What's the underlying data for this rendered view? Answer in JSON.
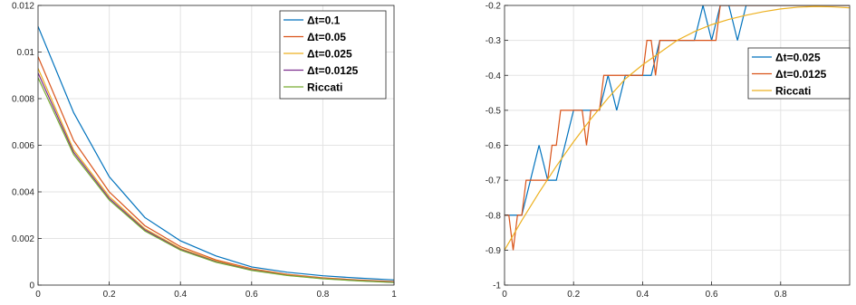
{
  "chart_data": [
    {
      "type": "line",
      "title": "",
      "xlabel": "",
      "ylabel": "",
      "xlim": [
        0,
        1
      ],
      "ylim": [
        0,
        0.012
      ],
      "xticks": [
        0,
        0.2,
        0.4,
        0.6,
        0.8,
        1
      ],
      "xtick_labels": [
        "0",
        "0.2",
        "0.4",
        "0.6",
        "0.8",
        "1"
      ],
      "yticks": [
        0,
        0.002,
        0.004,
        0.006,
        0.008,
        0.01,
        0.012
      ],
      "ytick_labels": [
        "0",
        "0.002",
        "0.004",
        "0.006",
        "0.008",
        "0.01",
        "0.012"
      ],
      "grid": true,
      "legend_position": "top-right",
      "series": [
        {
          "name": "Δt=0.1",
          "color": "#0072bd",
          "x": [
            0,
            0.1,
            0.2,
            0.3,
            0.4,
            0.5,
            0.6,
            0.7,
            0.8,
            0.9,
            1.0
          ],
          "y": [
            0.0111,
            0.0074,
            0.00465,
            0.0029,
            0.0019,
            0.00125,
            0.00078,
            0.00055,
            0.0004,
            0.0003,
            0.00022
          ]
        },
        {
          "name": "Δt=0.05",
          "color": "#d95319",
          "x": [
            0,
            0.1,
            0.2,
            0.3,
            0.4,
            0.5,
            0.6,
            0.7,
            0.8,
            0.9,
            1.0
          ],
          "y": [
            0.0098,
            0.0062,
            0.004,
            0.00255,
            0.00165,
            0.00108,
            0.0007,
            0.00046,
            0.00031,
            0.00022,
            0.00015
          ]
        },
        {
          "name": "Δt=0.025",
          "color": "#edb120",
          "x": [
            0,
            0.1,
            0.2,
            0.3,
            0.4,
            0.5,
            0.6,
            0.7,
            0.8,
            0.9,
            1.0
          ],
          "y": [
            0.0093,
            0.0058,
            0.0038,
            0.00242,
            0.00157,
            0.00103,
            0.00067,
            0.00044,
            0.00029,
            0.0002,
            0.00013
          ]
        },
        {
          "name": "Δt=0.0125",
          "color": "#7e2f8e",
          "x": [
            0,
            0.1,
            0.2,
            0.3,
            0.4,
            0.5,
            0.6,
            0.7,
            0.8,
            0.9,
            1.0
          ],
          "y": [
            0.0091,
            0.0057,
            0.00372,
            0.00237,
            0.00153,
            0.001,
            0.00065,
            0.00042,
            0.00028,
            0.00019,
            0.00012
          ]
        },
        {
          "name": "Riccati",
          "color": "#77ac30",
          "x": [
            0,
            0.1,
            0.2,
            0.3,
            0.4,
            0.5,
            0.6,
            0.7,
            0.8,
            0.9,
            1.0
          ],
          "y": [
            0.0089,
            0.0056,
            0.00365,
            0.00232,
            0.0015,
            0.00098,
            0.00063,
            0.00041,
            0.00027,
            0.00018,
            0.00011
          ]
        }
      ]
    },
    {
      "type": "line",
      "title": "",
      "xlabel": "",
      "ylabel": "",
      "xlim": [
        0,
        1
      ],
      "ylim": [
        -1,
        -0.2
      ],
      "xticks": [
        0,
        0.2,
        0.4,
        0.6,
        0.8
      ],
      "xtick_labels": [
        "0",
        "0.2",
        "0.4",
        "0.6",
        "0.8"
      ],
      "yticks": [
        -1,
        -0.9,
        -0.8,
        -0.7,
        -0.6,
        -0.5,
        -0.4,
        -0.3,
        -0.2
      ],
      "ytick_labels": [
        "-1",
        "-0.9",
        "-0.8",
        "-0.7",
        "-0.6",
        "-0.5",
        "-0.4",
        "-0.3",
        "-0.2"
      ],
      "grid": true,
      "legend_position": "right",
      "series": [
        {
          "name": "Δt=0.025",
          "color": "#0072bd",
          "x": [
            0,
            0.025,
            0.05,
            0.075,
            0.1,
            0.125,
            0.15,
            0.175,
            0.2,
            0.225,
            0.25,
            0.275,
            0.3,
            0.325,
            0.35,
            0.375,
            0.4,
            0.425,
            0.45,
            0.475,
            0.5,
            0.525,
            0.55,
            0.575,
            0.6,
            0.625,
            0.65,
            0.675,
            0.7,
            0.725,
            0.75,
            0.775,
            0.8,
            0.825,
            0.85,
            0.875,
            0.9,
            0.925,
            0.95,
            0.975,
            1.0
          ],
          "y": [
            -0.8,
            -0.8,
            -0.8,
            -0.7,
            -0.6,
            -0.7,
            -0.7,
            -0.6,
            -0.5,
            -0.5,
            -0.5,
            -0.5,
            -0.4,
            -0.5,
            -0.4,
            -0.4,
            -0.4,
            -0.4,
            -0.3,
            -0.3,
            -0.3,
            -0.3,
            -0.3,
            -0.2,
            -0.3,
            -0.2,
            -0.2,
            -0.3,
            -0.2,
            -0.2,
            -0.2,
            -0.2,
            -0.2,
            -0.2,
            -0.2,
            -0.2,
            -0.2,
            -0.2,
            -0.2,
            -0.2,
            -0.2
          ]
        },
        {
          "name": "Δt=0.0125",
          "color": "#d95319",
          "x": [
            0,
            0.0125,
            0.025,
            0.0375,
            0.05,
            0.0625,
            0.075,
            0.1,
            0.125,
            0.1375,
            0.15,
            0.1625,
            0.175,
            0.2,
            0.225,
            0.2375,
            0.25,
            0.275,
            0.2875,
            0.3,
            0.325,
            0.35,
            0.3625,
            0.375,
            0.4,
            0.4125,
            0.425,
            0.4375,
            0.45,
            0.475,
            0.5,
            0.55,
            0.5625,
            0.575,
            0.6,
            0.6125,
            0.625,
            0.65,
            0.7,
            0.8,
            0.9,
            1.0
          ],
          "y": [
            -0.8,
            -0.8,
            -0.9,
            -0.8,
            -0.8,
            -0.7,
            -0.7,
            -0.7,
            -0.7,
            -0.6,
            -0.6,
            -0.5,
            -0.5,
            -0.5,
            -0.5,
            -0.6,
            -0.5,
            -0.5,
            -0.4,
            -0.4,
            -0.4,
            -0.4,
            -0.4,
            -0.4,
            -0.4,
            -0.3,
            -0.3,
            -0.4,
            -0.3,
            -0.3,
            -0.3,
            -0.3,
            -0.3,
            -0.3,
            -0.3,
            -0.3,
            -0.2,
            -0.2,
            -0.2,
            -0.2,
            -0.2,
            -0.2
          ]
        },
        {
          "name": "Riccati",
          "color": "#edb120",
          "x": [
            0,
            0.05,
            0.1,
            0.15,
            0.2,
            0.25,
            0.3,
            0.35,
            0.4,
            0.45,
            0.5,
            0.55,
            0.6,
            0.65,
            0.7,
            0.75,
            0.8,
            0.85,
            0.9,
            0.95,
            1.0
          ],
          "y": [
            -0.9,
            -0.815,
            -0.735,
            -0.66,
            -0.59,
            -0.525,
            -0.465,
            -0.41,
            -0.37,
            -0.335,
            -0.3,
            -0.275,
            -0.255,
            -0.24,
            -0.228,
            -0.218,
            -0.21,
            -0.205,
            -0.203,
            -0.204,
            -0.207
          ]
        }
      ]
    }
  ]
}
